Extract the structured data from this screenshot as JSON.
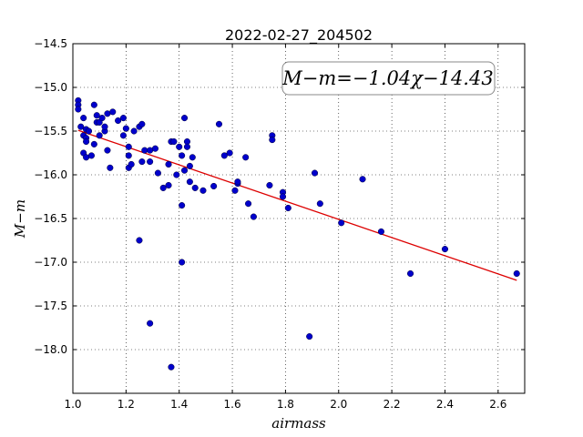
{
  "chart_data": {
    "type": "scatter",
    "title": "2022-02-27_204502",
    "xlabel": "airmass",
    "ylabel": "M−m",
    "xlim": [
      1.0,
      2.7
    ],
    "ylim": [
      -18.5,
      -14.5
    ],
    "xticks": [
      "1.0",
      "1.2",
      "1.4",
      "1.6",
      "1.8",
      "2.0",
      "2.2",
      "2.4",
      "2.6"
    ],
    "xtick_values": [
      1.0,
      1.2,
      1.4,
      1.6,
      1.8,
      2.0,
      2.2,
      2.4,
      2.6
    ],
    "yticks": [
      "−14.5",
      "−15.0",
      "−15.5",
      "−16.0",
      "−16.5",
      "−17.0",
      "−17.5",
      "−18.0"
    ],
    "ytick_values": [
      -14.5,
      -15.0,
      -15.5,
      -16.0,
      -16.5,
      -17.0,
      -17.5,
      -18.0
    ],
    "grid": true,
    "marker_color": "#0000cc",
    "fit_color": "#dd0000",
    "fit": {
      "slope": -1.04,
      "intercept": -14.43,
      "label": "M−m=−1.04χ−14.43",
      "x_range": [
        1.02,
        2.67
      ]
    },
    "points": [
      [
        1.02,
        -15.15
      ],
      [
        1.02,
        -15.2
      ],
      [
        1.02,
        -15.25
      ],
      [
        1.03,
        -15.45
      ],
      [
        1.04,
        -15.35
      ],
      [
        1.04,
        -15.55
      ],
      [
        1.05,
        -15.58
      ],
      [
        1.05,
        -15.62
      ],
      [
        1.05,
        -15.48
      ],
      [
        1.06,
        -15.5
      ],
      [
        1.04,
        -15.75
      ],
      [
        1.05,
        -15.8
      ],
      [
        1.07,
        -15.78
      ],
      [
        1.08,
        -15.2
      ],
      [
        1.08,
        -15.65
      ],
      [
        1.09,
        -15.4
      ],
      [
        1.09,
        -15.32
      ],
      [
        1.1,
        -15.55
      ],
      [
        1.1,
        -15.4
      ],
      [
        1.11,
        -15.35
      ],
      [
        1.12,
        -15.5
      ],
      [
        1.12,
        -15.45
      ],
      [
        1.13,
        -15.3
      ],
      [
        1.13,
        -15.72
      ],
      [
        1.15,
        -15.28
      ],
      [
        1.14,
        -15.92
      ],
      [
        1.17,
        -15.38
      ],
      [
        1.19,
        -15.55
      ],
      [
        1.19,
        -15.35
      ],
      [
        1.2,
        -15.47
      ],
      [
        1.21,
        -15.68
      ],
      [
        1.21,
        -15.78
      ],
      [
        1.21,
        -15.92
      ],
      [
        1.22,
        -15.88
      ],
      [
        1.23,
        -15.5
      ],
      [
        1.25,
        -15.45
      ],
      [
        1.26,
        -15.42
      ],
      [
        1.26,
        -15.85
      ],
      [
        1.27,
        -15.72
      ],
      [
        1.29,
        -15.72
      ],
      [
        1.29,
        -15.85
      ],
      [
        1.31,
        -15.7
      ],
      [
        1.32,
        -15.98
      ],
      [
        1.34,
        -16.15
      ],
      [
        1.36,
        -16.12
      ],
      [
        1.36,
        -15.88
      ],
      [
        1.37,
        -15.62
      ],
      [
        1.38,
        -15.62
      ],
      [
        1.39,
        -16.0
      ],
      [
        1.4,
        -15.68
      ],
      [
        1.41,
        -15.78
      ],
      [
        1.42,
        -15.95
      ],
      [
        1.42,
        -15.35
      ],
      [
        1.43,
        -15.62
      ],
      [
        1.43,
        -15.68
      ],
      [
        1.44,
        -16.08
      ],
      [
        1.44,
        -15.9
      ],
      [
        1.45,
        -15.8
      ],
      [
        1.46,
        -16.15
      ],
      [
        1.49,
        -16.18
      ],
      [
        1.41,
        -16.35
      ],
      [
        1.53,
        -16.13
      ],
      [
        1.55,
        -15.42
      ],
      [
        1.57,
        -15.78
      ],
      [
        1.59,
        -15.75
      ],
      [
        1.61,
        -16.18
      ],
      [
        1.62,
        -16.1
      ],
      [
        1.62,
        -16.08
      ],
      [
        1.65,
        -15.8
      ],
      [
        1.66,
        -16.33
      ],
      [
        1.68,
        -16.48
      ],
      [
        1.74,
        -16.12
      ],
      [
        1.75,
        -15.55
      ],
      [
        1.75,
        -15.6
      ],
      [
        1.79,
        -16.2
      ],
      [
        1.79,
        -16.25
      ],
      [
        1.81,
        -16.38
      ],
      [
        1.91,
        -15.98
      ],
      [
        1.93,
        -16.33
      ],
      [
        2.01,
        -16.55
      ],
      [
        2.09,
        -16.05
      ],
      [
        2.16,
        -16.65
      ],
      [
        1.89,
        -17.85
      ],
      [
        2.27,
        -17.13
      ],
      [
        2.4,
        -16.85
      ],
      [
        2.67,
        -17.13
      ],
      [
        1.25,
        -16.75
      ],
      [
        1.29,
        -17.7
      ],
      [
        1.37,
        -18.2
      ],
      [
        1.41,
        -17.0
      ]
    ]
  }
}
